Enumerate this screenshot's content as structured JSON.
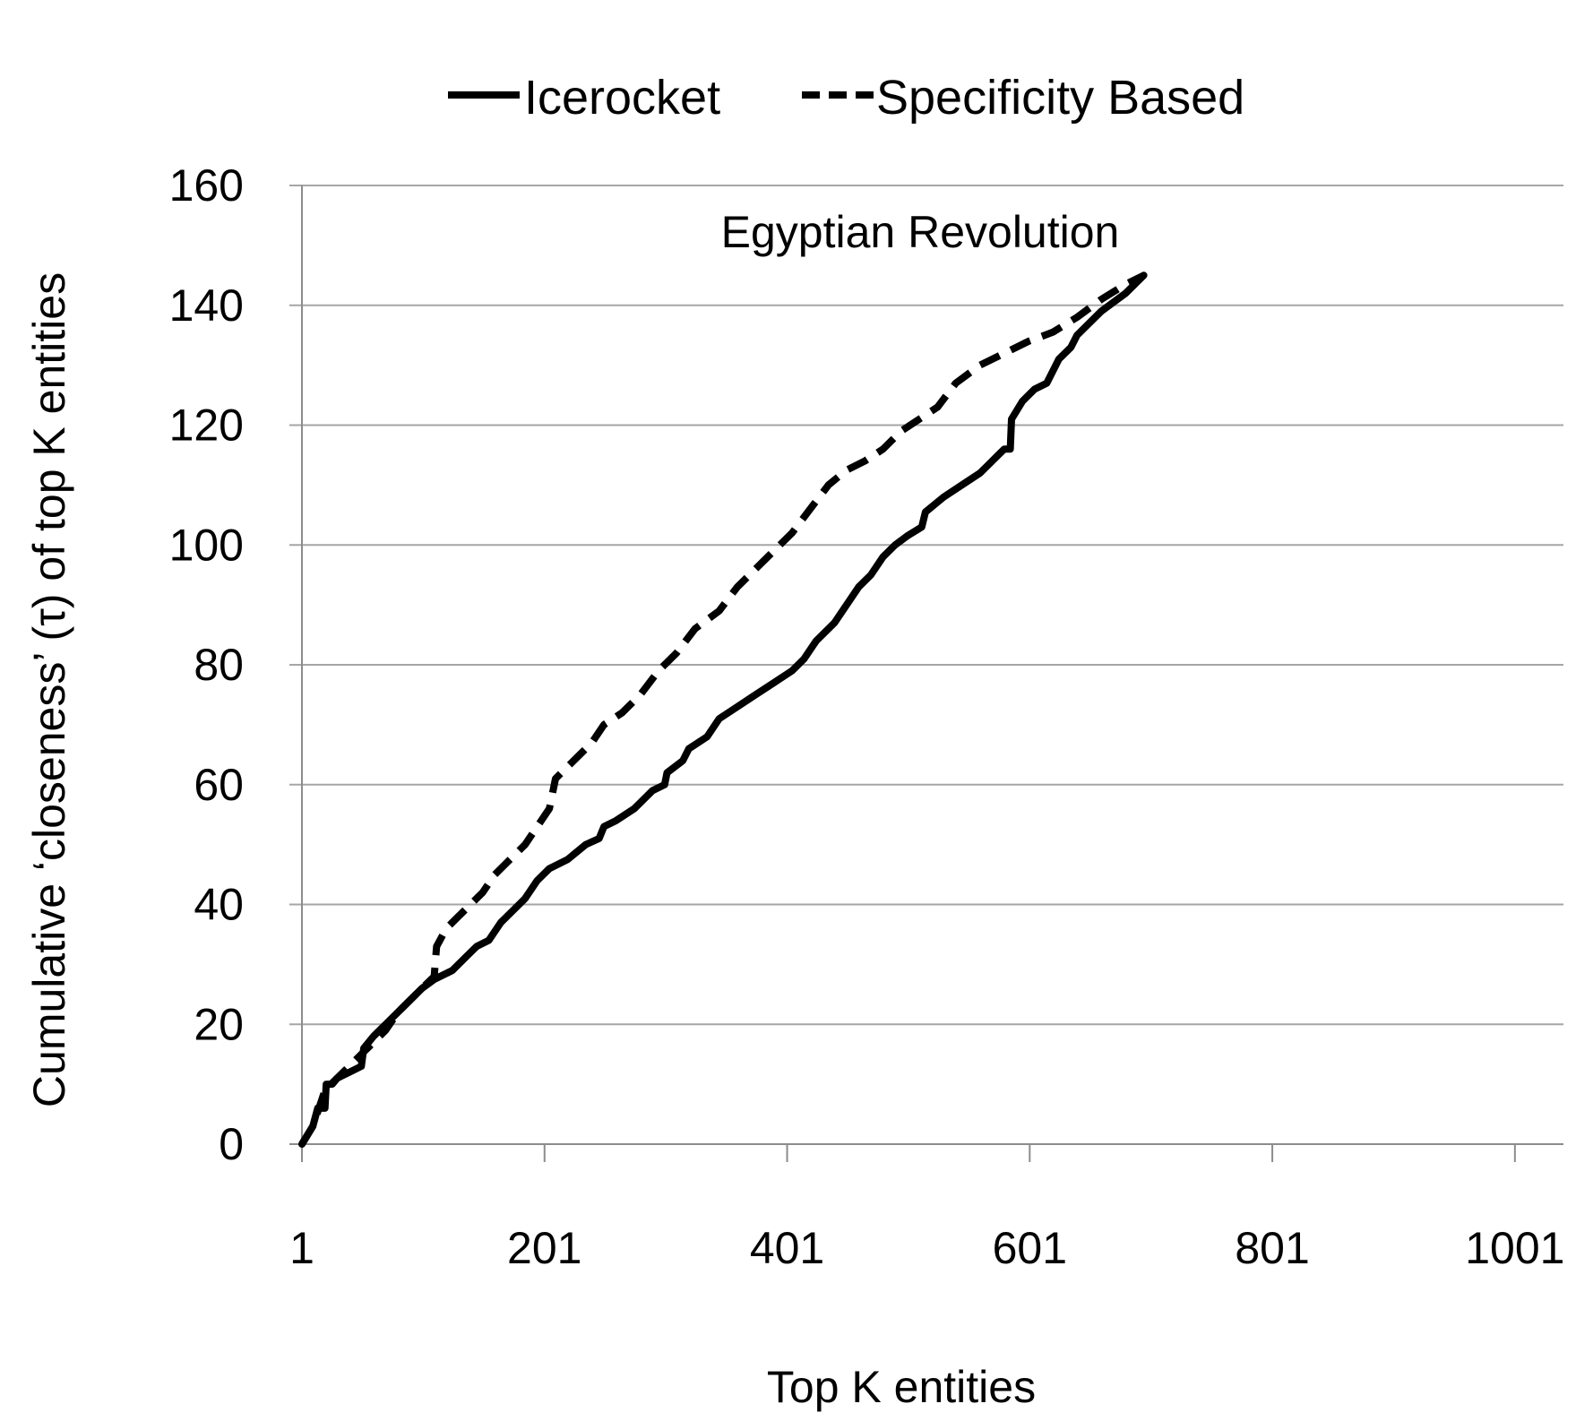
{
  "chart_data": {
    "type": "line",
    "title": "",
    "annotation": "Egyptian Revolution",
    "xlabel": "Top K entities",
    "ylabel": "Cumulative ‘closeness’ (τ) of top K entities",
    "xlim": [
      1,
      1041
    ],
    "ylim": [
      0,
      160
    ],
    "x_ticks": [
      "1",
      "201",
      "401",
      "601",
      "801",
      "1001"
    ],
    "y_ticks": [
      "0",
      "20",
      "40",
      "60",
      "80",
      "100",
      "120",
      "140",
      "160"
    ],
    "grid": true,
    "legend_position": "top",
    "series": [
      {
        "name": "Icerocket",
        "style": "solid",
        "color": "#000000",
        "points": [
          [
            1,
            0
          ],
          [
            10,
            3
          ],
          [
            14,
            6
          ],
          [
            20,
            6
          ],
          [
            21,
            10
          ],
          [
            26,
            10
          ],
          [
            30,
            11
          ],
          [
            40,
            12
          ],
          [
            50,
            13
          ],
          [
            52,
            16
          ],
          [
            60,
            18
          ],
          [
            70,
            20
          ],
          [
            80,
            22
          ],
          [
            90,
            24
          ],
          [
            100,
            26
          ],
          [
            110,
            27.5
          ],
          [
            125,
            29
          ],
          [
            135,
            31
          ],
          [
            145,
            33
          ],
          [
            155,
            34
          ],
          [
            165,
            37
          ],
          [
            175,
            39
          ],
          [
            185,
            41
          ],
          [
            195,
            44
          ],
          [
            205,
            46
          ],
          [
            220,
            47.5
          ],
          [
            235,
            50
          ],
          [
            246,
            51
          ],
          [
            250,
            53
          ],
          [
            260,
            54
          ],
          [
            275,
            56
          ],
          [
            290,
            59
          ],
          [
            300,
            60
          ],
          [
            302,
            62
          ],
          [
            315,
            64
          ],
          [
            320,
            66
          ],
          [
            335,
            68
          ],
          [
            345,
            71
          ],
          [
            360,
            73
          ],
          [
            375,
            75
          ],
          [
            390,
            77
          ],
          [
            405,
            79
          ],
          [
            415,
            81
          ],
          [
            425,
            84
          ],
          [
            440,
            87
          ],
          [
            450,
            90
          ],
          [
            460,
            93
          ],
          [
            470,
            95
          ],
          [
            480,
            98
          ],
          [
            490,
            100
          ],
          [
            500,
            101.5
          ],
          [
            512,
            103
          ],
          [
            515,
            105.5
          ],
          [
            530,
            108
          ],
          [
            545,
            110
          ],
          [
            560,
            112
          ],
          [
            565,
            113
          ],
          [
            575,
            115
          ],
          [
            580,
            116
          ],
          [
            585,
            116
          ],
          [
            586,
            121
          ],
          [
            595,
            124
          ],
          [
            605,
            126
          ],
          [
            615,
            127
          ],
          [
            625,
            131
          ],
          [
            635,
            133
          ],
          [
            640,
            135
          ],
          [
            650,
            137
          ],
          [
            660,
            139
          ],
          [
            670,
            140.5
          ],
          [
            680,
            142
          ],
          [
            690,
            144
          ],
          [
            695,
            145
          ]
        ]
      },
      {
        "name": "Specificity Based",
        "style": "dashed",
        "color": "#000000",
        "points": [
          [
            1,
            0
          ],
          [
            10,
            3
          ],
          [
            15,
            6
          ],
          [
            20,
            9
          ],
          [
            30,
            11
          ],
          [
            40,
            13
          ],
          [
            50,
            15
          ],
          [
            60,
            17
          ],
          [
            70,
            19
          ],
          [
            80,
            22
          ],
          [
            90,
            24
          ],
          [
            100,
            26
          ],
          [
            110,
            28
          ],
          [
            112,
            33
          ],
          [
            120,
            36
          ],
          [
            130,
            38
          ],
          [
            140,
            40
          ],
          [
            150,
            42
          ],
          [
            160,
            45
          ],
          [
            170,
            47
          ],
          [
            185,
            50
          ],
          [
            195,
            53
          ],
          [
            205,
            56
          ],
          [
            210,
            61
          ],
          [
            225,
            64
          ],
          [
            240,
            67
          ],
          [
            250,
            70
          ],
          [
            265,
            72
          ],
          [
            280,
            75
          ],
          [
            295,
            79
          ],
          [
            310,
            82
          ],
          [
            325,
            86
          ],
          [
            345,
            89
          ],
          [
            360,
            93
          ],
          [
            375,
            96
          ],
          [
            390,
            99
          ],
          [
            405,
            102
          ],
          [
            420,
            106
          ],
          [
            435,
            110
          ],
          [
            450,
            112.5
          ],
          [
            465,
            114
          ],
          [
            480,
            116
          ],
          [
            495,
            119
          ],
          [
            510,
            121
          ],
          [
            525,
            123
          ],
          [
            540,
            127
          ],
          [
            560,
            130
          ],
          [
            580,
            132
          ],
          [
            600,
            134
          ],
          [
            620,
            135.5
          ],
          [
            640,
            138
          ],
          [
            660,
            141
          ],
          [
            680,
            143.5
          ],
          [
            695,
            145
          ]
        ]
      }
    ]
  }
}
